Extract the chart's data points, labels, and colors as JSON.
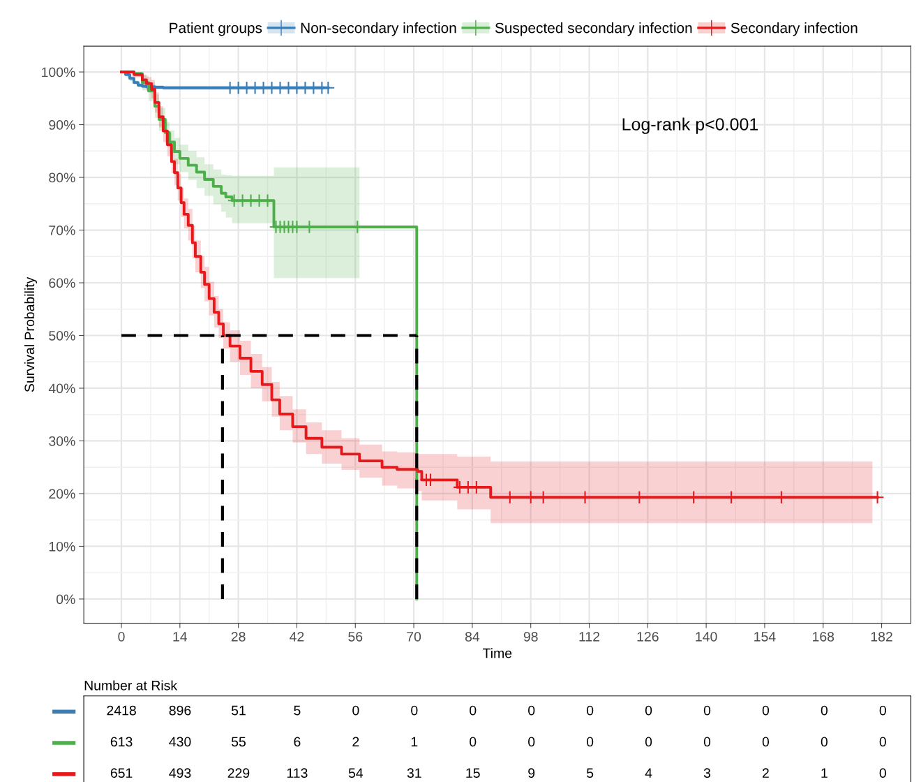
{
  "chart_data": [
    {
      "type": "step",
      "xlabel": "Time",
      "ylabel": "Survival Probability",
      "legend_title": "Patient groups",
      "legend": "top",
      "grid": true,
      "xlim": [
        -9,
        188.7
      ],
      "ylim": [
        -4.6,
        104.9
      ],
      "xticks": [
        0,
        14,
        28,
        42,
        56,
        70,
        84,
        98,
        112,
        126,
        140,
        154,
        168,
        182
      ],
      "yticks": [
        {
          "value": 0,
          "label": "0%"
        },
        {
          "value": 10,
          "label": "10%"
        },
        {
          "value": 20,
          "label": "20%"
        },
        {
          "value": 30,
          "label": "30%"
        },
        {
          "value": 40,
          "label": "40%"
        },
        {
          "value": 50,
          "label": "50%"
        },
        {
          "value": 60,
          "label": "60%"
        },
        {
          "value": 70,
          "label": "70%"
        },
        {
          "value": 80,
          "label": "80%"
        },
        {
          "value": 90,
          "label": "90%"
        },
        {
          "value": 100,
          "label": "100%"
        }
      ],
      "annotations": [
        "Log-rank p<0.001"
      ],
      "series": [
        {
          "name": "Non-secondary infection",
          "color": "#377eb8",
          "x": [
            0,
            1,
            2,
            3,
            4,
            5,
            6,
            8,
            10,
            48.5,
            49.5
          ],
          "values": [
            100,
            99.5,
            98.8,
            98,
            97.5,
            97.3,
            97.2,
            97.1,
            97,
            97,
            97
          ],
          "lower": [
            100,
            99,
            98.3,
            97.6,
            97.1,
            96.9,
            96.8,
            96.7,
            96.6,
            96.4,
            null
          ],
          "upper": [
            100,
            100,
            99.3,
            98.4,
            97.9,
            97.7,
            97.6,
            97.5,
            97.4,
            97.6,
            null
          ]
        },
        {
          "name": "Suspected secondary infection",
          "color": "#4daf4a",
          "x": [
            0,
            3,
            5,
            6.5,
            8,
            9,
            10.5,
            11.5,
            12.7,
            14,
            16,
            18,
            19.9,
            22,
            23.9,
            25,
            26.5,
            36.5,
            57,
            70.7
          ],
          "values": [
            100,
            99.7,
            98,
            96.4,
            93.5,
            91,
            88.5,
            86.7,
            84.9,
            83.6,
            82.3,
            81,
            79.6,
            78.3,
            77,
            76.3,
            75.6,
            70.6,
            70.6,
            0
          ],
          "lower": [
            100,
            99,
            96.5,
            94.5,
            91.3,
            88.8,
            86.5,
            84.5,
            82.5,
            81,
            79.5,
            78,
            76.5,
            74.9,
            73.5,
            72.4,
            71.3,
            60.9,
            60.9,
            null
          ],
          "upper": [
            100,
            100,
            99.3,
            98,
            95.7,
            93.2,
            90.5,
            88.9,
            87.5,
            86.2,
            85,
            83.8,
            82.5,
            81.5,
            80.5,
            80.4,
            80.3,
            81.9,
            81.9,
            null
          ]
        },
        {
          "name": "Secondary infection",
          "color": "#e41a1c",
          "x": [
            0,
            3,
            5,
            6,
            7.2,
            8,
            9,
            10,
            11,
            12,
            12.7,
            13.5,
            14.3,
            15,
            16,
            17,
            17.7,
            19,
            19.9,
            21,
            22.2,
            23.3,
            24.4,
            26,
            28.4,
            31,
            33.7,
            36,
            37.9,
            41,
            44.2,
            48,
            52.7,
            57,
            62.4,
            66,
            70.9,
            71.9,
            80.4,
            88.4,
            179.8,
            181
          ],
          "values": [
            100,
            99.5,
            98.5,
            97.8,
            96.7,
            94.2,
            91.5,
            88.8,
            86.2,
            83,
            80.9,
            78,
            75.2,
            73,
            70.9,
            67.6,
            65,
            62,
            59.7,
            57,
            54.4,
            52.2,
            50,
            48,
            45.7,
            43.2,
            40.7,
            37.8,
            35.1,
            32.7,
            30.5,
            28.8,
            27.5,
            26.2,
            25,
            24.6,
            24.2,
            22.6,
            21.2,
            19.3,
            19.3,
            19.3
          ],
          "lower": [
            100,
            99,
            97.5,
            96.5,
            95,
            92.3,
            89.5,
            86.7,
            84,
            80.8,
            78.5,
            75.6,
            72.5,
            70.3,
            68,
            64.6,
            62,
            59,
            56.5,
            53.8,
            51.5,
            49.5,
            47.5,
            45,
            42.5,
            40,
            37.5,
            34.6,
            32,
            29.7,
            27.5,
            25.7,
            24.5,
            23,
            21.5,
            21,
            20.5,
            18.7,
            17,
            14.4,
            14.4,
            null
          ],
          "upper": [
            100,
            100,
            99.5,
            99,
            98.5,
            96.1,
            93.5,
            91,
            88.5,
            85.5,
            83.5,
            80.6,
            78,
            76,
            74,
            70.8,
            68,
            65,
            63,
            60.2,
            57.5,
            55,
            52.5,
            51,
            49,
            46.5,
            44,
            41.2,
            38.5,
            36,
            33.5,
            32,
            30.5,
            29.3,
            28,
            27.8,
            27.5,
            27.5,
            27,
            26.1,
            26.1,
            null
          ]
        },
        {
          "type": "scatter",
          "marker": "cross",
          "color": "#377eb8",
          "x": [
            26,
            28,
            30,
            32,
            34,
            36,
            38,
            40,
            42,
            44,
            46,
            48,
            49.5
          ],
          "values": [
            97,
            97,
            97,
            97,
            97,
            97,
            97,
            97,
            97,
            97,
            97,
            97,
            97
          ]
        },
        {
          "type": "scatter",
          "marker": "cross",
          "color": "#4daf4a",
          "x": [
            27,
            29,
            31,
            33,
            35,
            37,
            38,
            39,
            40,
            41,
            42,
            45,
            56.5
          ],
          "values": [
            75.6,
            75.6,
            75.6,
            75.6,
            75.6,
            70.6,
            70.6,
            70.6,
            70.6,
            70.6,
            70.6,
            70.6,
            70.6
          ]
        },
        {
          "type": "scatter",
          "marker": "cross",
          "color": "#e41a1c",
          "x": [
            73,
            74,
            81,
            83,
            85,
            93,
            98,
            101,
            111,
            124,
            137,
            146,
            158,
            181
          ],
          "values": [
            22.6,
            22.6,
            21.2,
            21.2,
            21.2,
            19.3,
            19.3,
            19.3,
            19.3,
            19.3,
            19.3,
            19.3,
            19.3,
            19.3
          ]
        },
        {
          "type": "line",
          "line_style": "dashed",
          "color": "#000000",
          "x": [
            0,
            70.7
          ],
          "values": [
            50,
            50
          ]
        },
        {
          "type": "line",
          "line_style": "dashed",
          "color": "#000000",
          "x": [
            24.2,
            24.2
          ],
          "values": [
            0,
            50
          ]
        },
        {
          "type": "line",
          "line_style": "dashed",
          "color": "#000000",
          "x": [
            70.7,
            70.7
          ],
          "values": [
            0,
            50
          ]
        }
      ]
    },
    {
      "type": "heatmap",
      "title": "Number at Risk",
      "data_labels": true,
      "categories": [
        null,
        null,
        null,
        null,
        null,
        null,
        null,
        null,
        null,
        null,
        null,
        null,
        null,
        null
      ],
      "y_categories": [
        null,
        null,
        null
      ],
      "colors": [
        "#377eb8",
        "#4daf4a",
        "#e41a1c"
      ],
      "cells": [
        [
          2418,
          896,
          51,
          5,
          0,
          0,
          0,
          0,
          0,
          0,
          0,
          0,
          0,
          0
        ],
        [
          613,
          430,
          55,
          6,
          2,
          1,
          0,
          0,
          0,
          0,
          0,
          0,
          0,
          0
        ],
        [
          651,
          493,
          229,
          113,
          54,
          31,
          15,
          9,
          5,
          4,
          3,
          2,
          1,
          0
        ]
      ]
    }
  ]
}
